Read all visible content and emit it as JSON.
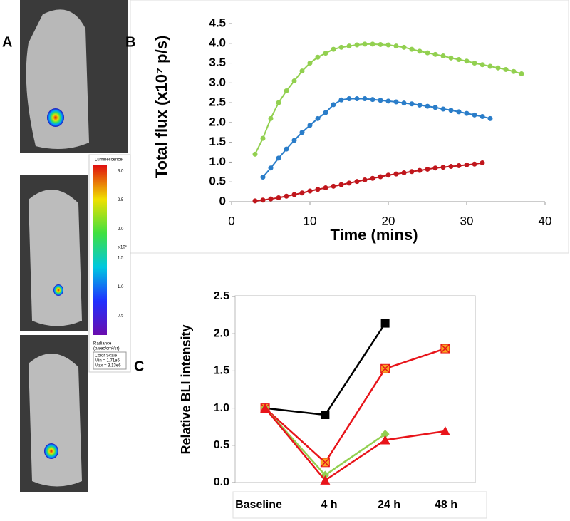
{
  "panel_labels": [
    "A",
    "B",
    "C"
  ],
  "colorbar": {
    "title": "Luminescence",
    "ticks": [
      "3.0",
      "2.5",
      "2.0",
      "1.5",
      "1.0",
      "0.5"
    ],
    "exponent": "x10⁶",
    "unit_label": "Radiance",
    "unit": "(p/sec/cm²/sr)",
    "scale_box": [
      "Color Scale",
      "Min = 1.71e5",
      "Max = 3.13e6"
    ]
  },
  "chart_data": [
    {
      "type": "line",
      "x_label": "Time (mins)",
      "y_label": "Total flux (x10⁷ p/s)",
      "xlim": [
        0,
        40
      ],
      "xticks": [
        0,
        10,
        20,
        30,
        40
      ],
      "ylim": [
        0,
        4.5
      ],
      "yticks": [
        0,
        0.5,
        {
          "value": 1,
          "label": "1.0"
        },
        1.5,
        {
          "value": 2,
          "label": "2.0"
        },
        2.5,
        {
          "value": 3,
          "label": "3.0"
        },
        3.5,
        {
          "value": 4,
          "label": "4.0"
        },
        4.5
      ],
      "series": [
        {
          "color": "#92d050",
          "x": [
            3,
            4,
            5,
            6,
            7,
            8,
            9,
            10,
            11,
            12,
            13,
            14,
            15,
            16,
            17,
            18,
            19,
            20,
            21,
            22,
            23,
            24,
            25,
            26,
            27,
            28,
            29,
            30,
            31,
            32,
            33,
            34,
            35,
            36,
            37
          ],
          "values": [
            1.2,
            1.6,
            2.1,
            2.5,
            2.8,
            3.05,
            3.3,
            3.5,
            3.65,
            3.75,
            3.85,
            3.9,
            3.93,
            3.96,
            3.98,
            3.98,
            3.97,
            3.96,
            3.93,
            3.9,
            3.85,
            3.8,
            3.76,
            3.72,
            3.68,
            3.63,
            3.59,
            3.55,
            3.5,
            3.46,
            3.42,
            3.38,
            3.34,
            3.29,
            3.23
          ]
        },
        {
          "color": "#2a7dc9",
          "x": [
            4,
            5,
            6,
            7,
            8,
            9,
            10,
            11,
            12,
            13,
            14,
            15,
            16,
            17,
            18,
            19,
            20,
            21,
            22,
            23,
            24,
            25,
            26,
            27,
            28,
            29,
            30,
            31,
            32,
            33
          ],
          "values": [
            0.62,
            0.85,
            1.1,
            1.33,
            1.55,
            1.75,
            1.93,
            2.1,
            2.25,
            2.45,
            2.57,
            2.6,
            2.6,
            2.6,
            2.58,
            2.56,
            2.54,
            2.52,
            2.49,
            2.47,
            2.44,
            2.41,
            2.38,
            2.34,
            2.31,
            2.27,
            2.23,
            2.19,
            2.15,
            2.1
          ]
        },
        {
          "color": "#c0161c",
          "x": [
            3,
            4,
            5,
            6,
            7,
            8,
            9,
            10,
            11,
            12,
            13,
            14,
            15,
            16,
            17,
            18,
            19,
            20,
            21,
            22,
            23,
            24,
            25,
            26,
            27,
            28,
            29,
            30,
            31,
            32
          ],
          "values": [
            0.02,
            0.04,
            0.07,
            0.1,
            0.14,
            0.18,
            0.22,
            0.27,
            0.31,
            0.35,
            0.39,
            0.43,
            0.47,
            0.51,
            0.55,
            0.59,
            0.63,
            0.67,
            0.7,
            0.73,
            0.76,
            0.79,
            0.82,
            0.85,
            0.87,
            0.89,
            0.91,
            0.93,
            0.95,
            0.98
          ]
        }
      ]
    },
    {
      "type": "line",
      "y_label": "Relative BLI intensity",
      "categories": [
        "Baseline",
        "4 h",
        "24 h",
        "48 h"
      ],
      "ylim": [
        0,
        2.5
      ],
      "yticks": [
        {
          "value": 0,
          "label": "0.0"
        },
        0.5,
        {
          "value": 1,
          "label": "1.0"
        },
        1.5,
        {
          "value": 2,
          "label": "2.0"
        },
        2.5
      ],
      "series": [
        {
          "color": "#000000",
          "marker": "square",
          "values": [
            1.0,
            0.91,
            2.14,
            null
          ]
        },
        {
          "color": "#e8141a",
          "marker_fill": "#f7a51f",
          "marker": "square-x",
          "values": [
            1.0,
            0.27,
            1.53,
            1.8
          ]
        },
        {
          "color": "#92d050",
          "marker": "diamond",
          "values": [
            1.0,
            0.1,
            0.65,
            null
          ]
        },
        {
          "color": "#e8141a",
          "marker": "triangle",
          "values": [
            1.0,
            0.03,
            0.57,
            0.69
          ]
        }
      ]
    }
  ]
}
